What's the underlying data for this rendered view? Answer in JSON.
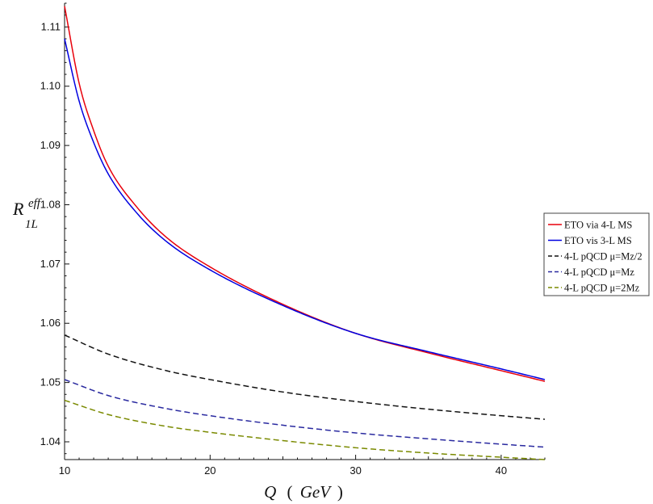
{
  "chart_data": {
    "type": "line",
    "title": "",
    "xlabel": "Q (GeV)",
    "ylabel": "R_1L^eff",
    "xlabel_parts": {
      "q": "Q",
      "open": "(",
      "unit": "GeV",
      "close": ")"
    },
    "ylabel_parts": {
      "main": "R",
      "sup": "eff",
      "sub": "1L"
    },
    "xlim": [
      10,
      43
    ],
    "ylim": [
      1.037,
      1.114
    ],
    "x_ticks": [
      10,
      20,
      30,
      40
    ],
    "y_ticks": [
      1.04,
      1.05,
      1.06,
      1.07,
      1.08,
      1.09,
      1.1,
      1.11
    ],
    "x_tick_labels": [
      "10",
      "20",
      "30",
      "40"
    ],
    "y_tick_labels": [
      "1.04",
      "1.05",
      "1.06",
      "1.07",
      "1.08",
      "1.09",
      "1.10",
      "1.11"
    ],
    "grid": false,
    "legend_position": "right",
    "series": [
      {
        "name": "ETO via 4-L MS",
        "color": "#e8000b",
        "dash": "solid",
        "x": [
          10,
          11,
          12,
          13,
          15,
          17,
          20,
          25,
          30,
          35,
          40,
          43
        ],
        "y": [
          1.1135,
          1.1005,
          1.0925,
          1.0865,
          1.0795,
          1.0745,
          1.0695,
          1.0632,
          1.0583,
          1.055,
          1.052,
          1.0502
        ]
      },
      {
        "name": "ETO vis 3-L MS",
        "color": "#0000e0",
        "dash": "solid",
        "x": [
          10,
          11,
          12,
          13,
          15,
          17,
          20,
          25,
          30,
          35,
          40,
          43
        ],
        "y": [
          1.108,
          1.0975,
          1.0905,
          1.0852,
          1.0785,
          1.0738,
          1.069,
          1.063,
          1.0583,
          1.0552,
          1.0523,
          1.0505
        ]
      },
      {
        "name": "4-L pQCD μ=Mz/2",
        "color": "#111111",
        "dash": "dash",
        "x": [
          10,
          13,
          17,
          20,
          25,
          30,
          35,
          40,
          43
        ],
        "y": [
          1.058,
          1.0548,
          1.052,
          1.0505,
          1.0484,
          1.0468,
          1.0455,
          1.0444,
          1.0438
        ]
      },
      {
        "name": "4-L pQCD μ=Mz",
        "color": "#2a2aa0",
        "dash": "dash",
        "x": [
          10,
          13,
          17,
          20,
          25,
          30,
          35,
          40,
          43
        ],
        "y": [
          1.0505,
          1.0478,
          1.0456,
          1.0444,
          1.0428,
          1.0415,
          1.0405,
          1.0396,
          1.0391
        ]
      },
      {
        "name": "4-L pQCD μ=2Mz",
        "color": "#7a8a00",
        "dash": "dash",
        "x": [
          10,
          13,
          17,
          20,
          25,
          30,
          35,
          40,
          43
        ],
        "y": [
          1.047,
          1.0446,
          1.0426,
          1.0416,
          1.0402,
          1.039,
          1.0381,
          1.0374,
          1.037
        ]
      }
    ]
  }
}
